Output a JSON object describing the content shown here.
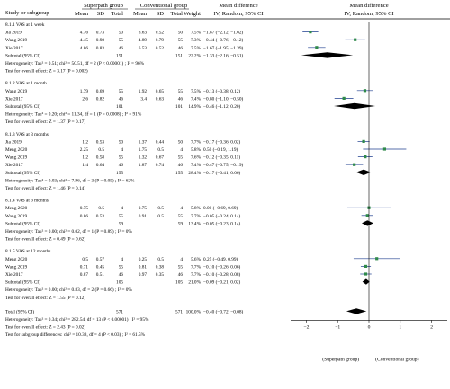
{
  "chart_data": {
    "type": "forest",
    "headers": {
      "col1": "Study or subgroup",
      "group1": "Superpath group",
      "group2": "Conventional group",
      "mean": "Mean",
      "sd": "SD",
      "total": "Total",
      "weight": "Weight",
      "md_title": "Mean difference",
      "md_sub": "IV, Random, 95% CI"
    },
    "xaxis": {
      "min": -2.5,
      "max": 2.5,
      "ticks": [
        -2,
        -1,
        0,
        1,
        2
      ]
    },
    "favors_left": "(Superpath group)",
    "favors_right": "(Conventional group)",
    "subgroups": [
      {
        "title": "8.1.1 VAS at 1 week",
        "studies": [
          {
            "name": "Jia 2019",
            "m1": "4.76",
            "sd1": "0.73",
            "n1": "50",
            "m2": "6.63",
            "sd2": "0.52",
            "n2": "50",
            "weight": "7.5%",
            "ci_text": "-1.87 (-2.12, -1.62)",
            "md": -1.87,
            "lo": -2.12,
            "hi": -1.62
          },
          {
            "name": "Wang 2019",
            "m1": "4.45",
            "sd1": "0.98",
            "n1": "55",
            "m2": "4.89",
            "sd2": "0.79",
            "n2": "55",
            "weight": "7.3%",
            "ci_text": "-0.44 (-0.76, -0.12)",
            "md": -0.44,
            "lo": -0.76,
            "hi": -0.12
          },
          {
            "name": "Xie 2017",
            "m1": "4.86",
            "sd1": "0.83",
            "n1": "46",
            "m2": "6.53",
            "sd2": "0.52",
            "n2": "46",
            "weight": "7.5%",
            "ci_text": "-1.67 (-1.95, -1.39)",
            "md": -1.67,
            "lo": -1.95,
            "hi": -1.39
          }
        ],
        "subtotal": {
          "label": "Subtotal (95% CI)",
          "n1": "151",
          "n2": "151",
          "weight": "22.2%",
          "ci_text": "-1.33 (-2.16, -0.51)",
          "md": -1.33,
          "lo": -2.16,
          "hi": -0.51
        },
        "heterogeneity": "Heterogeneity: Tau² = 0.51; chi² = 50.51, df = 2 (P < 0.00001) ; I² = 96%",
        "overall": "Test for overall effect: Z = 3.17 (P = 0.002)"
      },
      {
        "title": "8.1.2 VAS at 1 month",
        "studies": [
          {
            "name": "Wang 2019",
            "m1": "1.79",
            "sd1": "0.69",
            "n1": "55",
            "m2": "1.92",
            "sd2": "0.65",
            "n2": "55",
            "weight": "7.5%",
            "ci_text": "-0.13 (-0.38, 0.12)",
            "md": -0.13,
            "lo": -0.38,
            "hi": 0.12
          },
          {
            "name": "Xie 2017",
            "m1": "2.6",
            "sd1": "0.82",
            "n1": "46",
            "m2": "3.4",
            "sd2": "0.63",
            "n2": "46",
            "weight": "7.4%",
            "ci_text": "-0.80 (-1.10, -0.50)",
            "md": -0.8,
            "lo": -1.1,
            "hi": -0.5
          }
        ],
        "subtotal": {
          "label": "Subtotal (95% CI)",
          "n1": "101",
          "n2": "101",
          "weight": "14.9%",
          "ci_text": "-0.46 (-1.12, 0.20)",
          "md": -0.46,
          "lo": -1.12,
          "hi": 0.2
        },
        "heterogeneity": "Heterogeneity: Tau² = 0.20; chi² = 11.34, df = 1 (P = 0.0008) ; I² = 91%",
        "overall": "Test for overall effect: Z = 1.37 (P = 0.17)"
      },
      {
        "title": "8.1.3 VAS at 3 months",
        "studies": [
          {
            "name": "Jia 2019",
            "m1": "1.2",
            "sd1": "0.53",
            "n1": "50",
            "m2": "1.37",
            "sd2": "0.44",
            "n2": "50",
            "weight": "7.7%",
            "ci_text": "-0.17 (-0.36, 0.02)",
            "md": -0.17,
            "lo": -0.36,
            "hi": 0.02
          },
          {
            "name": "Meng 2020",
            "m1": "2.25",
            "sd1": "0.5",
            "n1": "4",
            "m2": "1.75",
            "sd2": "0.5",
            "n2": "4",
            "weight": "5.8%",
            "ci_text": "0.50 (-0.19, 1.19)",
            "md": 0.5,
            "lo": -0.19,
            "hi": 1.19
          },
          {
            "name": "Wang 2019",
            "m1": "1.2",
            "sd1": "0.58",
            "n1": "55",
            "m2": "1.32",
            "sd2": "0.67",
            "n2": "55",
            "weight": "7.6%",
            "ci_text": "-0.12 (-0.35, 0.11)",
            "md": -0.12,
            "lo": -0.35,
            "hi": 0.11
          },
          {
            "name": "Xie 2017",
            "m1": "1.4",
            "sd1": "0.64",
            "n1": "46",
            "m2": "1.87",
            "sd2": "0.74",
            "n2": "46",
            "weight": "7.4%",
            "ci_text": "-0.47 (-0.75, -0.19)",
            "md": -0.47,
            "lo": -0.75,
            "hi": -0.19
          }
        ],
        "subtotal": {
          "label": "Subtotal (95% CI)",
          "n1": "155",
          "n2": "155",
          "weight": "28.4%",
          "ci_text": "-0.17 (-0.41, 0.06)",
          "md": -0.17,
          "lo": -0.41,
          "hi": 0.06
        },
        "heterogeneity": "Heterogeneity: Tau² = 0.03; chi² = 7.96, df = 3 (P = 0.05) ; I² = 62%",
        "overall": "Test for overall effect: Z = 1.46 (P = 0.14)"
      },
      {
        "title": "8.1.4 VAS at 6 months",
        "studies": [
          {
            "name": "Meng 2020",
            "m1": "0.75",
            "sd1": "0.5",
            "n1": "4",
            "m2": "0.75",
            "sd2": "0.5",
            "n2": "4",
            "weight": "5.8%",
            "ci_text": "0.00 (-0.69, 0.69)",
            "md": 0.0,
            "lo": -0.69,
            "hi": 0.69
          },
          {
            "name": "Wang 2019",
            "m1": "0.86",
            "sd1": "0.53",
            "n1": "55",
            "m2": "0.91",
            "sd2": "0.5",
            "n2": "55",
            "weight": "7.7%",
            "ci_text": "-0.05 (-0.24, 0.14)",
            "md": -0.05,
            "lo": -0.24,
            "hi": 0.14
          }
        ],
        "subtotal": {
          "label": "Subtotal (95% CI)",
          "n1": "59",
          "n2": "59",
          "weight": "13.4%",
          "ci_text": "-0.05 (-0.23, 0.14)",
          "md": -0.05,
          "lo": -0.23,
          "hi": 0.14
        },
        "heterogeneity": "Heterogeneity: Tau² = 0.00; chi² = 0.02, df = 1 (P = 0.89) ; I² = 0%",
        "overall": "Test for overall effect: Z = 0.49 (P = 0.62)"
      },
      {
        "title": "8.1.5 VAS at 12 months",
        "studies": [
          {
            "name": "Meng 2020",
            "m1": "0.5",
            "sd1": "0.57",
            "n1": "4",
            "m2": "0.25",
            "sd2": "0.5",
            "n2": "4",
            "weight": "5.6%",
            "ci_text": "0.25 (-0.49, 0.99)",
            "md": 0.25,
            "lo": -0.49,
            "hi": 0.99
          },
          {
            "name": "Wang 2019",
            "m1": "0.71",
            "sd1": "0.45",
            "n1": "55",
            "m2": "0.81",
            "sd2": "0.38",
            "n2": "55",
            "weight": "7.7%",
            "ci_text": "-0.10 (-0.26, 0.06)",
            "md": -0.1,
            "lo": -0.26,
            "hi": 0.06
          },
          {
            "name": "Xie 2017",
            "m1": "0.87",
            "sd1": "0.51",
            "n1": "46",
            "m2": "0.97",
            "sd2": "0.35",
            "n2": "46",
            "weight": "7.7%",
            "ci_text": "-0.10 (-0.28, 0.08)",
            "md": -0.1,
            "lo": -0.28,
            "hi": 0.08
          }
        ],
        "subtotal": {
          "label": "Subtotal (95% CI)",
          "n1": "105",
          "n2": "105",
          "weight": "21.0%",
          "ci_text": "-0.09 (-0.21, 0.02)",
          "md": -0.09,
          "lo": -0.21,
          "hi": 0.02
        },
        "heterogeneity": "Heterogeneity: Tau² = 0.00; chi² = 0.83, df = 2 (P = 0.66) ; I² = 0%",
        "overall": "Test for overall effect: Z = 1.55 (P = 0.12)"
      }
    ],
    "total": {
      "label": "Total (95% CI)",
      "n1": "571",
      "n2": "571",
      "weight": "100.0%",
      "ci_text": "-0.40 (-0.72, -0.08)",
      "md": -0.4,
      "lo": -0.72,
      "hi": -0.08
    },
    "total_heterogeneity": "Heterogeneity: Tau² = 0.34; chi² = 282.54, df = 13 (P < 0.00001) ; I² = 95%",
    "total_overall": "Test for overall effect: Z = 2.43 (P = 0.02)",
    "subgroup_diff": "Test for subgroup differences: chi² = 10.38, df = 4 (P < 0.03) ; I² = 61.5%",
    "colors": {
      "study_marker": "#2f8a4a",
      "ci_line": "#1f3f8f",
      "diamond": "#000000",
      "rule": "#000000"
    }
  }
}
